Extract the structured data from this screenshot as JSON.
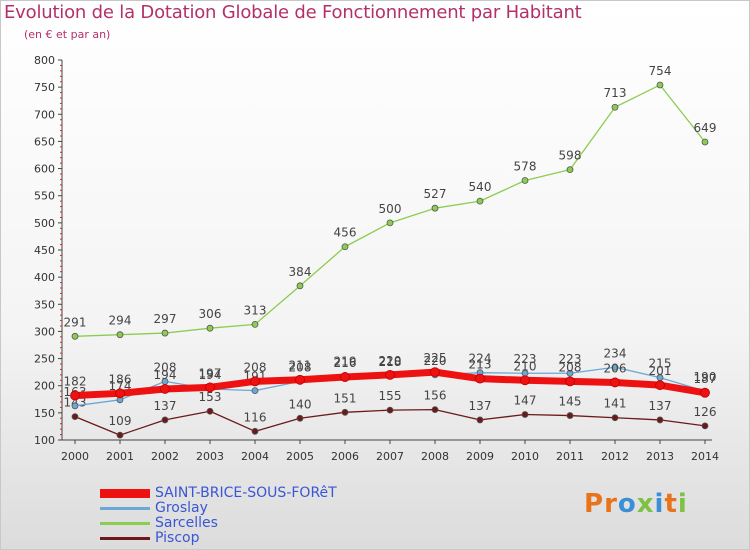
{
  "header": {
    "title": "Evolution de la Dotation Globale de Fonctionnement par Habitant",
    "subtitle": "(en € et par an)"
  },
  "logo": {
    "text": "Proxiti",
    "colors": [
      "#e8731a",
      "#3b8fd6",
      "#7cc243"
    ]
  },
  "chart_data": {
    "type": "line",
    "title": "Evolution de la Dotation Globale de Fonctionnement par Habitant",
    "subtitle": "(en € et par an)",
    "x": [
      "2000",
      "2001",
      "2002",
      "2003",
      "2004",
      "2005",
      "2006",
      "2007",
      "2008",
      "2009",
      "2010",
      "2011",
      "2012",
      "2013",
      "2014"
    ],
    "ylim": [
      100,
      800
    ],
    "yticks": [
      100,
      150,
      200,
      250,
      300,
      350,
      400,
      450,
      500,
      550,
      600,
      650,
      700,
      750,
      800
    ],
    "grid": false,
    "legend_position": "bottom-left",
    "series": [
      {
        "name": "Piscop",
        "color": "#6b1a1a",
        "values": [
          143,
          109,
          137,
          153,
          116,
          140,
          151,
          155,
          156,
          137,
          147,
          145,
          141,
          137,
          126
        ]
      },
      {
        "name": "Sarcelles",
        "color": "#8ccc52",
        "values": [
          291,
          294,
          297,
          306,
          313,
          384,
          456,
          500,
          527,
          540,
          578,
          598,
          713,
          754,
          649
        ]
      },
      {
        "name": "Groslay",
        "color": "#6aa8d6",
        "values": [
          163,
          174,
          208,
          194,
          191,
          208,
          219,
          218,
          220,
          224,
          223,
          223,
          234,
          215,
          190
        ]
      },
      {
        "name": "SAINT-BRICE-SOUS-FORêT",
        "color": "#ee1111",
        "values": [
          182,
          186,
          194,
          197,
          208,
          211,
          216,
          220,
          225,
          213,
          210,
          208,
          206,
          201,
          187
        ]
      }
    ]
  }
}
